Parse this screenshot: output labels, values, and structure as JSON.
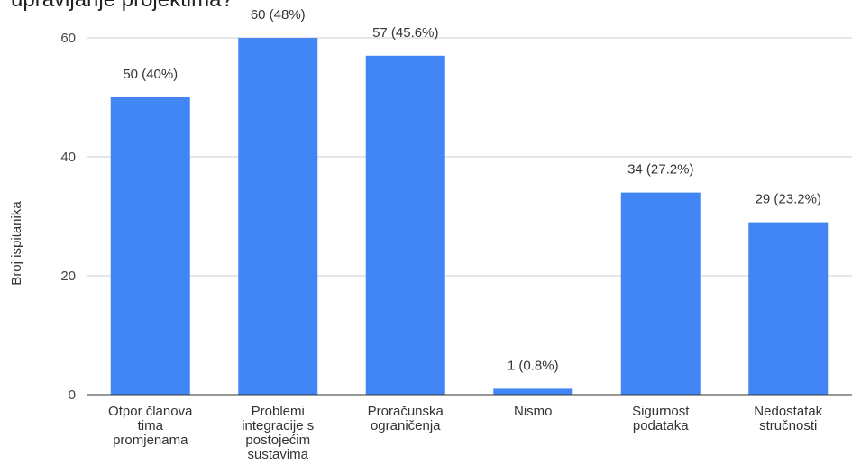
{
  "chart_data": {
    "type": "bar",
    "title": "upravljanje projektima?",
    "xlabel": "",
    "ylabel": "Broj ispitanika",
    "ylim": [
      0,
      60
    ],
    "yticks": [
      0,
      20,
      40,
      60
    ],
    "grid": true,
    "legend": "none",
    "categories": [
      [
        "Otpor članova",
        "tima",
        "promjenama"
      ],
      [
        "Problemi",
        "integracije s",
        "postojećim",
        "sustavima"
      ],
      [
        "Proračunska",
        "ograničenja"
      ],
      [
        "Nismo"
      ],
      [
        "Sigurnost",
        "podataka"
      ],
      [
        "Nedostatak",
        "stručnosti"
      ]
    ],
    "values": [
      50,
      60,
      57,
      1,
      34,
      29
    ],
    "data_labels": [
      "50 (40%)",
      "60 (48%)",
      "57 (45.6%)",
      "1 (0.8%)",
      "34 (27.2%)",
      "29 (23.2%)"
    ],
    "bar_color": "#4285f4",
    "grid_color": "#cccccc",
    "axis_color": "#333333"
  }
}
